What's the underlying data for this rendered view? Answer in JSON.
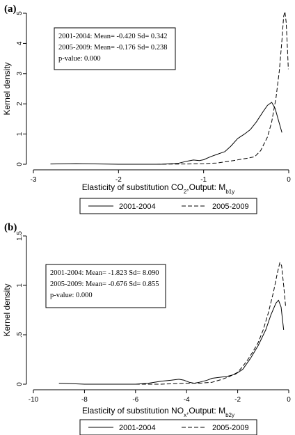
{
  "chart_data": [
    {
      "type": "line",
      "panel_label": "(a)",
      "ylabel": "Kernel density",
      "xlabel": {
        "pre": "Elasticity of substitution CO",
        "sub1": "2",
        "mid": ",Output: M",
        "sub2": "b1y"
      },
      "xlim": [
        -3,
        0
      ],
      "ylim": [
        0,
        5
      ],
      "x_ticks": [
        {
          "v": -3,
          "label": "-3"
        },
        {
          "v": -2,
          "label": "-2"
        },
        {
          "v": -1,
          "label": "-1"
        },
        {
          "v": 0,
          "label": "0"
        }
      ],
      "y_ticks": [
        {
          "v": 0,
          "label": "0"
        },
        {
          "v": 1,
          "label": "1"
        },
        {
          "v": 2,
          "label": "2"
        },
        {
          "v": 3,
          "label": "3"
        },
        {
          "v": 4,
          "label": "4"
        },
        {
          "v": 5,
          "label": "5"
        }
      ],
      "annotations": [
        "2001-2004: Mean= -0.420 Sd= 0.342",
        "2005-2009: Mean= -0.176 Sd= 0.238",
        "p-value: 0.000"
      ],
      "legend_position": "bottom",
      "series": [
        {
          "name": "2001-2004",
          "style": "solid",
          "points": [
            [
              -2.8,
              0.01
            ],
            [
              -2.5,
              0.02
            ],
            [
              -2.2,
              0.01
            ],
            [
              -2.0,
              0.0
            ],
            [
              -1.8,
              0.0
            ],
            [
              -1.5,
              0.0
            ],
            [
              -1.3,
              0.03
            ],
            [
              -1.2,
              0.1
            ],
            [
              -1.12,
              0.14
            ],
            [
              -1.05,
              0.12
            ],
            [
              -1.0,
              0.15
            ],
            [
              -0.92,
              0.25
            ],
            [
              -0.85,
              0.32
            ],
            [
              -0.75,
              0.42
            ],
            [
              -0.68,
              0.6
            ],
            [
              -0.6,
              0.85
            ],
            [
              -0.52,
              1.0
            ],
            [
              -0.45,
              1.15
            ],
            [
              -0.38,
              1.4
            ],
            [
              -0.3,
              1.75
            ],
            [
              -0.25,
              1.95
            ],
            [
              -0.2,
              2.05
            ],
            [
              -0.16,
              1.85
            ],
            [
              -0.12,
              1.45
            ],
            [
              -0.08,
              1.05
            ]
          ]
        },
        {
          "name": "2005-2009",
          "style": "dashed",
          "points": [
            [
              -2.0,
              0.0
            ],
            [
              -1.6,
              0.0
            ],
            [
              -1.2,
              0.01
            ],
            [
              -1.0,
              0.02
            ],
            [
              -0.85,
              0.04
            ],
            [
              -0.75,
              0.08
            ],
            [
              -0.65,
              0.12
            ],
            [
              -0.55,
              0.17
            ],
            [
              -0.48,
              0.2
            ],
            [
              -0.4,
              0.25
            ],
            [
              -0.33,
              0.45
            ],
            [
              -0.25,
              0.9
            ],
            [
              -0.2,
              1.4
            ],
            [
              -0.15,
              2.2
            ],
            [
              -0.11,
              3.1
            ],
            [
              -0.08,
              4.1
            ],
            [
              -0.06,
              4.9
            ],
            [
              -0.045,
              5.05
            ],
            [
              -0.03,
              4.7
            ],
            [
              -0.015,
              3.8
            ],
            [
              -0.005,
              3.15
            ]
          ]
        }
      ]
    },
    {
      "type": "line",
      "panel_label": "(b)",
      "ylabel": "Kernel density",
      "xlabel": {
        "pre": "Elasticity of substitution NO",
        "sub1": "x",
        "mid": ",Output: M",
        "sub2": "b2y"
      },
      "xlim": [
        -10,
        0
      ],
      "ylim": [
        0,
        1.5
      ],
      "x_ticks": [
        {
          "v": -10,
          "label": "-10"
        },
        {
          "v": -8,
          "label": "-8"
        },
        {
          "v": -6,
          "label": "-6"
        },
        {
          "v": -4,
          "label": "-4"
        },
        {
          "v": -2,
          "label": "-2"
        },
        {
          "v": 0,
          "label": "0"
        }
      ],
      "y_ticks": [
        {
          "v": 0,
          "label": "0"
        },
        {
          "v": 0.5,
          "label": ".5"
        },
        {
          "v": 1,
          "label": "1"
        },
        {
          "v": 1.5,
          "label": "1.5"
        }
      ],
      "annotations": [
        "2001-2004: Mean= -1.823 Sd= 8.090",
        "2005-2009: Mean= -0.676 Sd= 0.855",
        "p-value: 0.000"
      ],
      "legend_position": "bottom",
      "series": [
        {
          "name": "2001-2004",
          "style": "solid",
          "points": [
            [
              -9.0,
              0.01
            ],
            [
              -8.5,
              0.005
            ],
            [
              -8.0,
              0.0
            ],
            [
              -7.0,
              0.0
            ],
            [
              -6.0,
              0.0
            ],
            [
              -5.5,
              0.01
            ],
            [
              -5.0,
              0.03
            ],
            [
              -4.6,
              0.04
            ],
            [
              -4.3,
              0.05
            ],
            [
              -4.1,
              0.04
            ],
            [
              -3.9,
              0.02
            ],
            [
              -3.7,
              0.01
            ],
            [
              -3.5,
              0.02
            ],
            [
              -3.2,
              0.04
            ],
            [
              -3.0,
              0.06
            ],
            [
              -2.7,
              0.07
            ],
            [
              -2.4,
              0.08
            ],
            [
              -2.1,
              0.1
            ],
            [
              -1.8,
              0.15
            ],
            [
              -1.5,
              0.26
            ],
            [
              -1.2,
              0.39
            ],
            [
              -0.9,
              0.55
            ],
            [
              -0.7,
              0.7
            ],
            [
              -0.5,
              0.82
            ],
            [
              -0.4,
              0.85
            ],
            [
              -0.3,
              0.78
            ],
            [
              -0.2,
              0.55
            ]
          ]
        },
        {
          "name": "2005-2009",
          "style": "dashed",
          "points": [
            [
              -6.0,
              0.0
            ],
            [
              -5.0,
              0.0
            ],
            [
              -4.0,
              0.01
            ],
            [
              -3.5,
              0.01
            ],
            [
              -3.0,
              0.02
            ],
            [
              -2.6,
              0.05
            ],
            [
              -2.3,
              0.08
            ],
            [
              -2.0,
              0.12
            ],
            [
              -1.8,
              0.18
            ],
            [
              -1.6,
              0.25
            ],
            [
              -1.4,
              0.33
            ],
            [
              -1.2,
              0.42
            ],
            [
              -1.0,
              0.55
            ],
            [
              -0.8,
              0.72
            ],
            [
              -0.6,
              0.93
            ],
            [
              -0.45,
              1.12
            ],
            [
              -0.35,
              1.23
            ],
            [
              -0.28,
              1.2
            ],
            [
              -0.2,
              1.0
            ],
            [
              -0.12,
              0.78
            ]
          ]
        }
      ]
    }
  ]
}
